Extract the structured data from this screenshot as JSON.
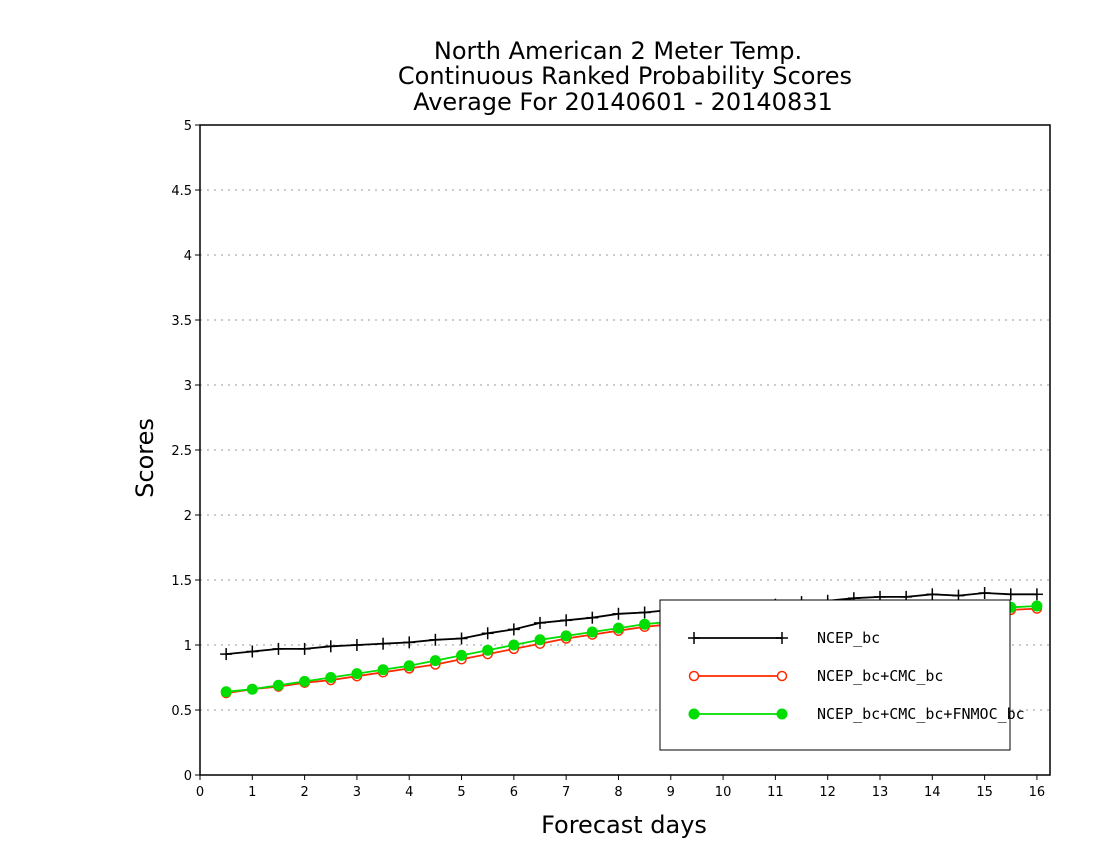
{
  "chart_data": {
    "type": "line",
    "title": [
      "North American 2 Meter Temp.",
      "Continuous Ranked Probability Scores",
      "Average For 20140601 - 20140831"
    ],
    "xlabel": "Forecast days",
    "ylabel": "Scores",
    "xlim": [
      0,
      16.25
    ],
    "ylim": [
      0,
      5
    ],
    "x_ticks": [
      0,
      1,
      2,
      3,
      4,
      5,
      6,
      7,
      8,
      9,
      10,
      11,
      12,
      13,
      14,
      15,
      16
    ],
    "y_ticks": [
      0,
      0.5,
      1,
      1.5,
      2,
      2.5,
      3,
      3.5,
      4,
      4.5,
      5
    ],
    "grid": "horizontal dotted",
    "legend_position": "lower-right",
    "x": [
      0.5,
      1,
      1.5,
      2,
      2.5,
      3,
      3.5,
      4,
      4.5,
      5,
      5.5,
      6,
      6.5,
      7,
      7.5,
      8,
      8.5,
      9,
      9.5,
      10,
      10.5,
      11,
      11.5,
      12,
      12.5,
      13,
      13.5,
      14,
      14.5,
      15,
      15.5,
      16
    ],
    "series": [
      {
        "name": "NCEP_bc",
        "color": "#000000",
        "marker": "plus",
        "values": [
          0.93,
          0.95,
          0.97,
          0.97,
          0.99,
          1.0,
          1.01,
          1.02,
          1.04,
          1.05,
          1.09,
          1.12,
          1.17,
          1.19,
          1.21,
          1.24,
          1.25,
          1.27,
          1.28,
          1.29,
          1.3,
          1.31,
          1.33,
          1.34,
          1.36,
          1.37,
          1.37,
          1.39,
          1.38,
          1.4,
          1.39,
          1.39
        ]
      },
      {
        "name": "NCEP_bc+CMC_bc",
        "color": "#ff2a00",
        "marker": "open-circle",
        "values": [
          0.63,
          0.66,
          0.68,
          0.71,
          0.73,
          0.76,
          0.79,
          0.82,
          0.85,
          0.89,
          0.93,
          0.97,
          1.01,
          1.05,
          1.08,
          1.11,
          1.14,
          1.16,
          1.18,
          1.2,
          1.21,
          1.22,
          1.23,
          1.24,
          1.25,
          1.26,
          1.26,
          1.27,
          1.27,
          1.28,
          1.27,
          1.28
        ]
      },
      {
        "name": "NCEP_bc+CMC_bc+FNMOC_bc",
        "color": "#00dd00",
        "marker": "filled-circle",
        "values": [
          0.64,
          0.66,
          0.69,
          0.72,
          0.75,
          0.78,
          0.81,
          0.84,
          0.88,
          0.92,
          0.96,
          1.0,
          1.04,
          1.07,
          1.1,
          1.13,
          1.16,
          1.18,
          1.2,
          1.21,
          1.23,
          1.24,
          1.25,
          1.26,
          1.27,
          1.28,
          1.28,
          1.29,
          1.29,
          1.3,
          1.29,
          1.3
        ]
      }
    ]
  }
}
